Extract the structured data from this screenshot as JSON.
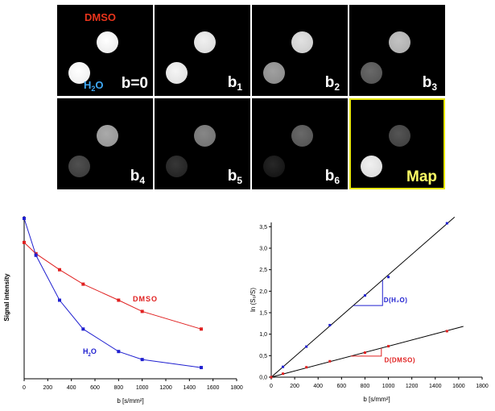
{
  "images": {
    "dmso_label": "DMSO",
    "h2o_label_main": "H",
    "h2o_label_sub": "2",
    "h2o_label_tail": "O",
    "tiles": [
      {
        "label_main": "b=0",
        "label_sub": "",
        "dmso_gray": 245,
        "h2o_gray": 250
      },
      {
        "label_main": "b",
        "label_sub": "1",
        "dmso_gray": 230,
        "h2o_gray": 235
      },
      {
        "label_main": "b",
        "label_sub": "2",
        "dmso_gray": 215,
        "h2o_gray": 150
      },
      {
        "label_main": "b",
        "label_sub": "3",
        "dmso_gray": 185,
        "h2o_gray": 95
      },
      {
        "label_main": "b",
        "label_sub": "4",
        "dmso_gray": 160,
        "h2o_gray": 70
      },
      {
        "label_main": "b",
        "label_sub": "5",
        "dmso_gray": 125,
        "h2o_gray": 45
      },
      {
        "label_main": "b",
        "label_sub": "6",
        "dmso_gray": 95,
        "h2o_gray": 30
      },
      {
        "label_main": "Map",
        "label_sub": "",
        "dmso_gray": 75,
        "h2o_gray": 230
      }
    ],
    "colors": {
      "dmso_text": "#e8341c",
      "h2o_text": "#3fa9f5",
      "map_border": "#e6e600",
      "map_text": "#ffff66"
    }
  },
  "chart_data": [
    {
      "type": "line",
      "xlabel": "b [s/mm²]",
      "ylabel": "Signal intensity",
      "xlim": [
        0,
        1800
      ],
      "xticks": [
        0,
        200,
        400,
        600,
        800,
        1000,
        1200,
        1400,
        1600,
        1800
      ],
      "ylim": [
        0,
        1
      ],
      "series": [
        {
          "name": "DMSO",
          "color": "#e02020",
          "x": [
            0,
            100,
            300,
            500,
            800,
            1000,
            1500
          ],
          "y": [
            0.85,
            0.78,
            0.68,
            0.59,
            0.49,
            0.42,
            0.31
          ]
        },
        {
          "name": "H2O",
          "color": "#2020d0",
          "x": [
            0,
            100,
            300,
            500,
            800,
            1000,
            1500
          ],
          "y": [
            1.0,
            0.77,
            0.49,
            0.31,
            0.17,
            0.12,
            0.07
          ]
        }
      ]
    },
    {
      "type": "scatter",
      "xlabel": "b [s/mm²]",
      "ylabel": "ln (S₀/S)",
      "xlim": [
        0,
        1800
      ],
      "xticks": [
        0,
        200,
        400,
        600,
        800,
        1000,
        1200,
        1400,
        1600,
        1800
      ],
      "ylim": [
        0,
        3.6
      ],
      "yticks": [
        "0,0",
        "0,5",
        "1,0",
        "1,5",
        "2,0",
        "2,5",
        "3,0",
        "3,5"
      ],
      "yticks_values": [
        0,
        0.5,
        1.0,
        1.5,
        2.0,
        2.5,
        3.0,
        3.5
      ],
      "annotations": [
        "D(H₂O)",
        "D(DMSO)"
      ],
      "series": [
        {
          "name": "H2O",
          "color": "#2020d0",
          "x": [
            0,
            100,
            300,
            500,
            800,
            1000,
            1500
          ],
          "y": [
            0.0,
            0.24,
            0.71,
            1.21,
            1.9,
            2.33,
            3.58
          ],
          "fit_slope": 0.00238
        },
        {
          "name": "DMSO",
          "color": "#e02020",
          "x": [
            0,
            100,
            300,
            500,
            800,
            1000,
            1500
          ],
          "y": [
            0.0,
            0.08,
            0.23,
            0.37,
            0.57,
            0.72,
            1.07
          ],
          "fit_slope": 0.00072
        }
      ]
    }
  ]
}
